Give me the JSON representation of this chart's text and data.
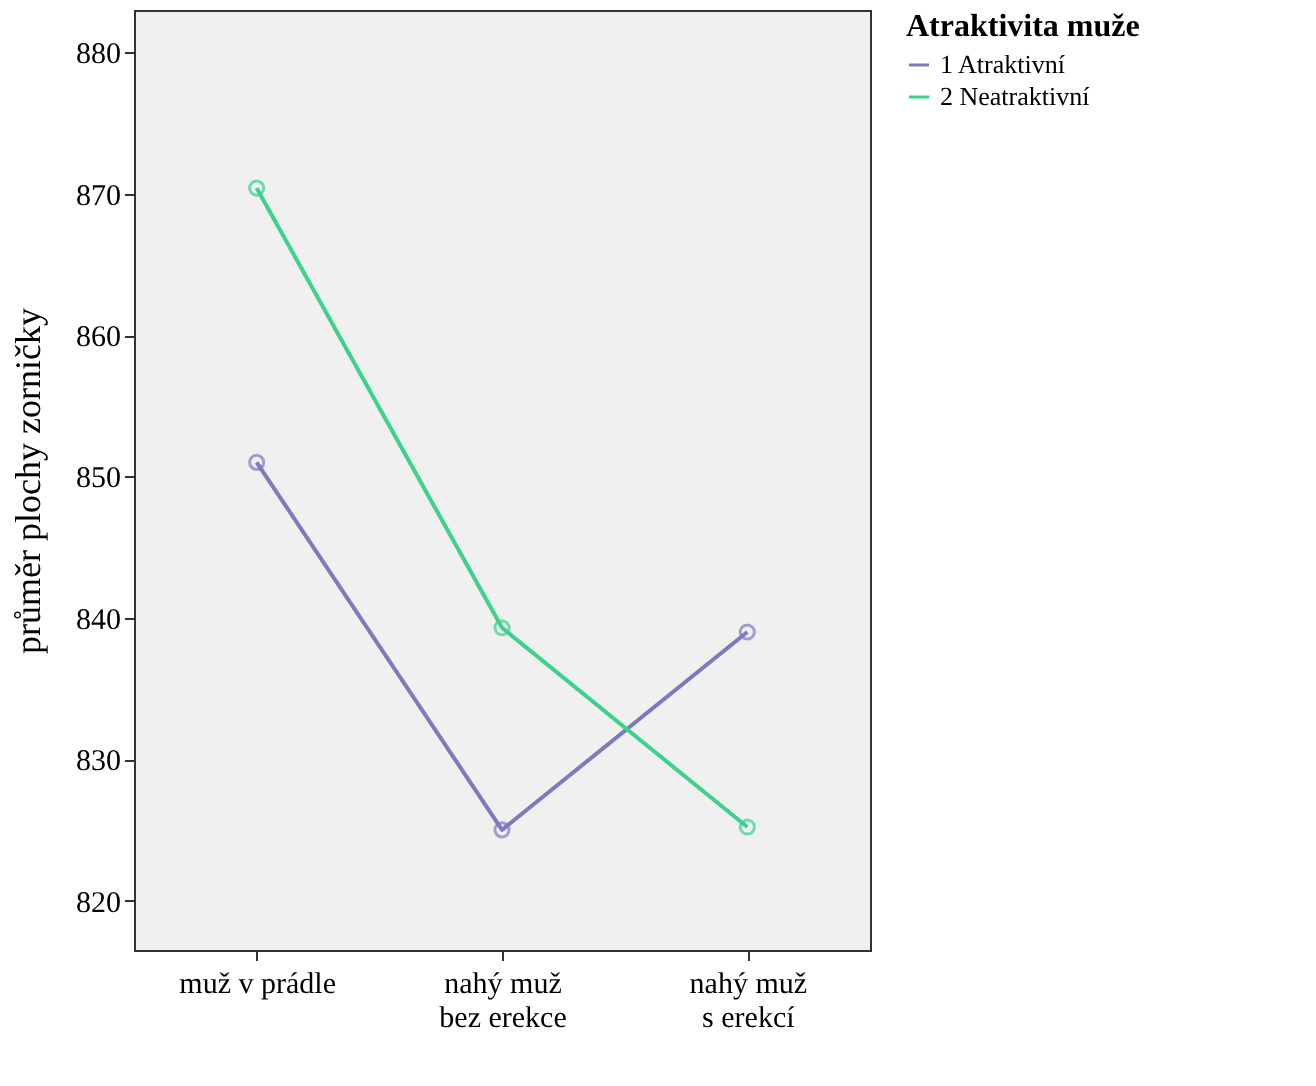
{
  "chart_data": {
    "type": "line",
    "ylabel": "průměr plochy zorničky",
    "legend_title": "Atraktivita muže",
    "categories": [
      "muž v prádle",
      "nahý muž\nbez erekce",
      "nahý muž\ns erekcí"
    ],
    "series": [
      {
        "name": "1 Atraktivní",
        "color": "#7b7bc0",
        "values": [
          851.0,
          825.0,
          839.0
        ]
      },
      {
        "name": "2 Neatraktivní",
        "color": "#3cd28c",
        "values": [
          870.4,
          839.3,
          825.2
        ]
      }
    ],
    "ylim": [
      816.5,
      883
    ],
    "yticks": [
      820,
      830,
      840,
      850,
      860,
      870,
      880
    ],
    "grid": false,
    "legend": "top right",
    "marker": "circle",
    "line_style": "solid"
  }
}
